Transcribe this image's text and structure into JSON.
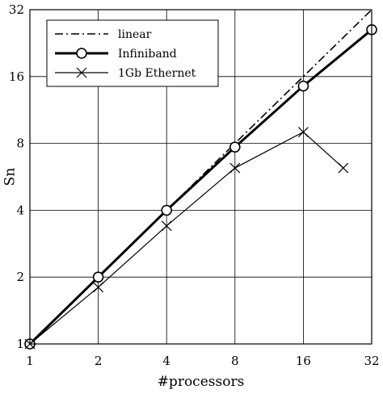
{
  "chart_data": {
    "type": "line",
    "xlabel": "#processors",
    "ylabel": "Sn",
    "x_scale": "log2",
    "y_scale": "log2",
    "xlim": [
      1,
      32
    ],
    "ylim": [
      1,
      32
    ],
    "xticks": [
      1,
      2,
      4,
      8,
      16,
      32
    ],
    "xtick_labels": [
      "1",
      "2",
      "4",
      "8",
      "16",
      "32"
    ],
    "yticks": [
      1,
      2,
      4,
      8,
      16,
      32
    ],
    "ytick_labels": [
      "1",
      "2",
      "4",
      "8",
      "16",
      "32"
    ],
    "grid": true,
    "legend_position": "top-left",
    "series": [
      {
        "name": "linear",
        "style": "dash-dot",
        "marker": "none",
        "color": "#000000",
        "points": [
          [
            1,
            1
          ],
          [
            32,
            32
          ]
        ]
      },
      {
        "name": "Infiniband",
        "style": "solid-thick",
        "marker": "circle",
        "color": "#000000",
        "points": [
          [
            1,
            1
          ],
          [
            2,
            2
          ],
          [
            4,
            4
          ],
          [
            8,
            7.7
          ],
          [
            16,
            14.5
          ],
          [
            32,
            26
          ]
        ]
      },
      {
        "name": "1Gb Ethernet",
        "style": "solid-thin",
        "marker": "x",
        "color": "#000000",
        "points": [
          [
            1,
            1
          ],
          [
            2,
            1.8
          ],
          [
            4,
            3.4
          ],
          [
            8,
            6.2
          ],
          [
            16,
            9
          ],
          [
            24,
            6.2
          ]
        ]
      }
    ]
  }
}
